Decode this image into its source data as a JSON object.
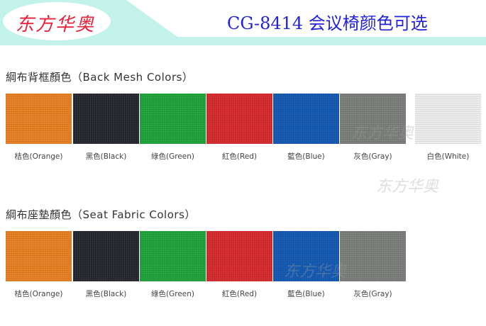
{
  "header": {
    "logo": "东方华奥",
    "title": "CG-8414 会议椅颜色可选"
  },
  "sections": [
    {
      "title": "綱布背框顏色（Back Mesh Colors）",
      "swatches": [
        {
          "label": "桔色(Orange)",
          "color": "#e67e22"
        },
        {
          "label": "黑色(Black)",
          "color": "#26262e"
        },
        {
          "label": "綠色(Green)",
          "color": "#1fa23a"
        },
        {
          "label": "紅色(Red)",
          "color": "#d42a2e"
        },
        {
          "label": "藍色(Blue)",
          "color": "#1258b0"
        },
        {
          "label": "灰色(Gray)",
          "color": "#7a7d7a"
        },
        {
          "label": "白色(White)",
          "color": "#ececec"
        }
      ]
    },
    {
      "title": "綱布座墊顏色（Seat Fabric Colors）",
      "swatches": [
        {
          "label": "桔色(Orange)",
          "color": "#e67e22"
        },
        {
          "label": "黑色(Black)",
          "color": "#26262e"
        },
        {
          "label": "綠色(Green)",
          "color": "#1fa23a"
        },
        {
          "label": "紅色(Red)",
          "color": "#d42a2e"
        },
        {
          "label": "藍色(Blue)",
          "color": "#1258b0"
        },
        {
          "label": "灰色(Gray)",
          "color": "#7a7d7a"
        }
      ]
    }
  ],
  "watermark": "东方华奥"
}
